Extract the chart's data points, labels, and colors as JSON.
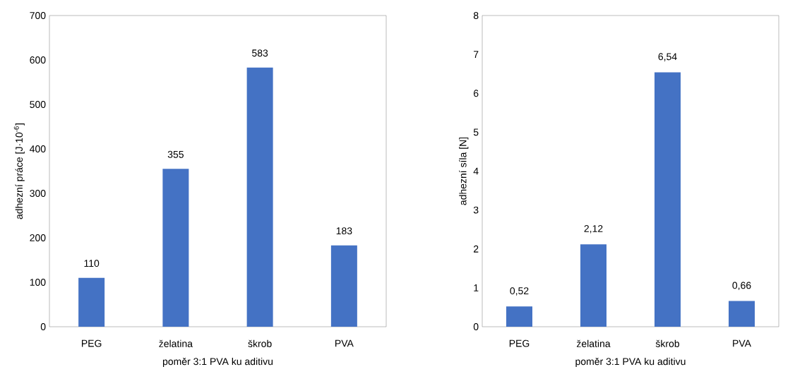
{
  "chart_data": [
    {
      "type": "bar",
      "categories": [
        "PEG",
        "želatina",
        "škrob",
        "PVA"
      ],
      "values": [
        110,
        355,
        583,
        183
      ],
      "color": "#4472c4",
      "ylim": [
        0,
        700
      ],
      "yticks": [
        0,
        100,
        200,
        300,
        400,
        500,
        600,
        700
      ],
      "ylabel": "adhezní práce [J·10$^{-6}$]",
      "xlabel": "poměr  3:1 PVA ku aditivu",
      "data_labels": true
    },
    {
      "type": "bar",
      "categories": [
        "PEG",
        "želatina",
        "škrob",
        "PVA"
      ],
      "values": [
        0.52,
        2.12,
        6.54,
        0.66
      ],
      "value_labels": [
        "0,52",
        "2,12",
        "6,54",
        "0,66"
      ],
      "color": "#4472c4",
      "ylim": [
        0,
        8
      ],
      "yticks": [
        0,
        1,
        2,
        3,
        4,
        5,
        6,
        7,
        8
      ],
      "ylabel": "adhezní síla [N]",
      "xlabel": "poměr 3:1 PVA ku aditivu"
    }
  ]
}
